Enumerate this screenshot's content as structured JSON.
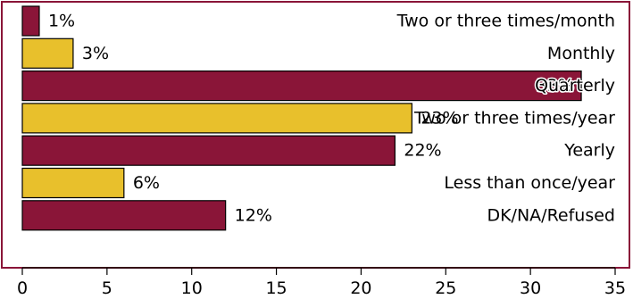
{
  "chart_data": {
    "type": "bar",
    "orientation": "horizontal",
    "title": "",
    "xlabel": "",
    "ylabel": "",
    "xlim": [
      0,
      35
    ],
    "x_ticks": [
      "0",
      "5",
      "10",
      "15",
      "20",
      "25",
      "30",
      "35"
    ],
    "grid": false,
    "legend": "none",
    "categories": [
      "Two or three times/month",
      "Monthly",
      "Quarterly",
      "Two or three times/year",
      "Yearly",
      "Less than once/year",
      "DK/NA/Refused"
    ],
    "values": [
      1,
      3,
      33,
      23,
      22,
      6,
      12
    ],
    "value_labels": [
      "1%",
      "3%",
      "33%",
      "23%",
      "22%",
      "6%",
      "12%"
    ],
    "bar_colors": [
      "#8a1538",
      "#e8c02c",
      "#8a1538",
      "#e8c02c",
      "#8a1538",
      "#e8c02c",
      "#8a1538"
    ],
    "frame_color": "#8a1538"
  }
}
